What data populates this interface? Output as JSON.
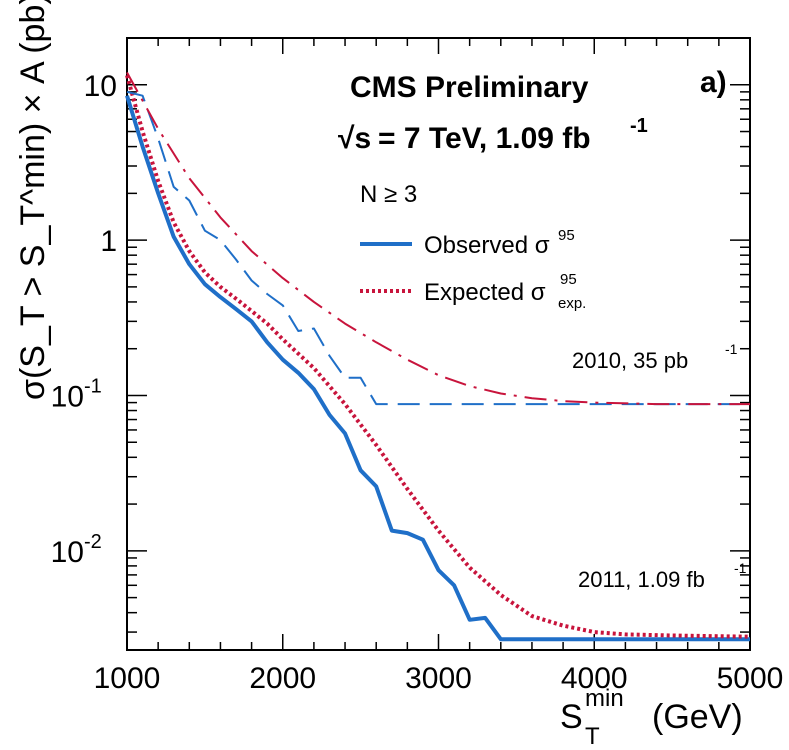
{
  "chart_data": {
    "type": "line",
    "title_line1": "CMS Preliminary",
    "title_line2": "= 7 TeV, 1.09 fb",
    "title_line2_sqrt": "√s",
    "title_line2_sup": "-1",
    "panel_label": "a)",
    "selection": "N ≥ 3",
    "xlabel_main": "S",
    "xlabel_sub": "T",
    "xlabel_sup": "min",
    "xlabel_unit": "(GeV)",
    "ylabel": "σ(S_T > S_T^min) × A (pb)",
    "yscale": "log",
    "xlim": [
      1000,
      5000
    ],
    "ylim": [
      0.0023,
      20
    ],
    "x_ticks": [
      "1000",
      "2000",
      "3000",
      "4000",
      "5000"
    ],
    "x_tick_values": [
      1000,
      2000,
      3000,
      4000,
      5000
    ],
    "y_ticks": [
      {
        "value": 10,
        "base": "10",
        "sup": ""
      },
      {
        "value": 1,
        "base": "1",
        "sup": ""
      },
      {
        "value": 0.1,
        "base": "10",
        "sup": "-1"
      },
      {
        "value": 0.01,
        "base": "10",
        "sup": "-2"
      }
    ],
    "legend": [
      {
        "label": "Observed σ",
        "sup": "95",
        "sub": "",
        "style": "solid",
        "color": "#1f6fc8"
      },
      {
        "label": "Expected σ",
        "sup": "95",
        "sub": "exp.",
        "style": "dotted",
        "color": "#c8143c"
      }
    ],
    "annotations": [
      {
        "text": "2010, 35 pb",
        "sup": "-1"
      },
      {
        "text": "2011, 1.09 fb",
        "sup": "-1"
      }
    ],
    "series": [
      {
        "name": "Observed σ95 (2011, 1.09 fb-1)",
        "color": "#1f6fc8",
        "style": "solid",
        "x": [
          1000,
          1100,
          1200,
          1300,
          1400,
          1500,
          1600,
          1700,
          1800,
          1900,
          2000,
          2100,
          2200,
          2300,
          2400,
          2500,
          2600,
          2700,
          2800,
          2900,
          3000,
          3100,
          3200,
          3300,
          3400,
          3500,
          3600,
          4000,
          5000
        ],
        "y": [
          8.5,
          4.0,
          2.0,
          1.05,
          0.7,
          0.52,
          0.43,
          0.36,
          0.3,
          0.22,
          0.17,
          0.14,
          0.11,
          0.075,
          0.057,
          0.033,
          0.026,
          0.0135,
          0.013,
          0.0118,
          0.0075,
          0.006,
          0.0036,
          0.0037,
          0.0027,
          0.0027,
          0.0027,
          0.0027,
          0.0027
        ]
      },
      {
        "name": "Expected σ95 exp. (2011, 1.09 fb-1)",
        "color": "#c8143c",
        "style": "dotted",
        "x": [
          1000,
          1100,
          1200,
          1300,
          1400,
          1500,
          1600,
          1700,
          1800,
          1900,
          2000,
          2200,
          2400,
          2600,
          2800,
          3000,
          3200,
          3400,
          3600,
          3800,
          4000,
          4200,
          4500,
          5000
        ],
        "y": [
          11.5,
          5.0,
          2.4,
          1.3,
          0.85,
          0.62,
          0.5,
          0.42,
          0.35,
          0.29,
          0.23,
          0.15,
          0.088,
          0.048,
          0.025,
          0.0135,
          0.0078,
          0.0052,
          0.0038,
          0.0033,
          0.003,
          0.0029,
          0.00285,
          0.0028
        ]
      },
      {
        "name": "Observed (2010, 35 pb-1)",
        "color": "#1f6fc8",
        "style": "longdash",
        "x": [
          1000,
          1100,
          1200,
          1300,
          1400,
          1500,
          1600,
          1700,
          1800,
          1900,
          2000,
          2100,
          2200,
          2300,
          2400,
          2500,
          2600,
          3000,
          4000,
          5000
        ],
        "y": [
          9.0,
          8.5,
          4.5,
          2.2,
          1.8,
          1.15,
          1.0,
          0.75,
          0.55,
          0.45,
          0.38,
          0.26,
          0.27,
          0.18,
          0.13,
          0.13,
          0.088,
          0.088,
          0.088,
          0.088
        ]
      },
      {
        "name": "Expected (2010, 35 pb-1)",
        "color": "#c8143c",
        "style": "dashdot",
        "x": [
          1000,
          1200,
          1400,
          1600,
          1800,
          2000,
          2200,
          2400,
          2600,
          2800,
          3000,
          3200,
          3400,
          3600,
          3800,
          4000,
          4400,
          5000
        ],
        "y": [
          12.0,
          5.2,
          2.5,
          1.4,
          0.85,
          0.57,
          0.4,
          0.29,
          0.22,
          0.17,
          0.135,
          0.115,
          0.103,
          0.096,
          0.092,
          0.09,
          0.088,
          0.088
        ]
      }
    ]
  }
}
